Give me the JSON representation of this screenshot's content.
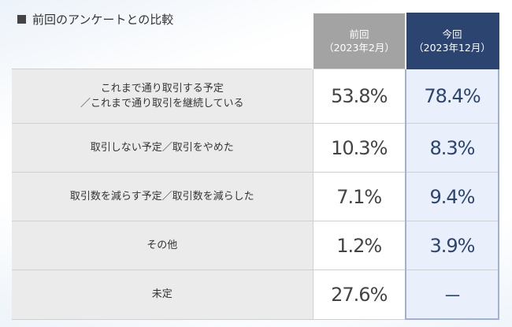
{
  "title": "前回のアンケートとの比較",
  "header": {
    "prev": {
      "line1": "前回",
      "line2": "（2023年2月）"
    },
    "curr": {
      "line1": "今回",
      "line2": "（2023年12月）"
    }
  },
  "rows": [
    {
      "label_line1": "これまで通り取引する予定",
      "label_line2": "／これまで通り取引を継続している",
      "prev": "53.8%",
      "curr": "78.4%"
    },
    {
      "label_line1": "取引しない予定／取引をやめた",
      "label_line2": "",
      "prev": "10.3%",
      "curr": "8.3%"
    },
    {
      "label_line1": "取引数を減らす予定／取引数を減らした",
      "label_line2": "",
      "prev": "7.1%",
      "curr": "9.4%"
    },
    {
      "label_line1": "その他",
      "label_line2": "",
      "prev": "1.2%",
      "curr": "3.9%"
    },
    {
      "label_line1": "未定",
      "label_line2": "",
      "prev": "27.6%",
      "curr": "－"
    }
  ],
  "colors": {
    "prev_header": "#a3a3a3",
    "curr_header": "#2c4470",
    "curr_cell_bg": "#e9f0fb",
    "label_bg": "#ebebeb"
  }
}
